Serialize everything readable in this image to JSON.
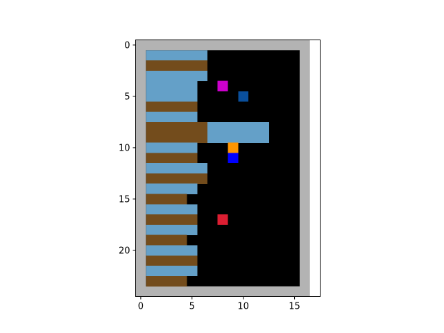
{
  "chart_data": {
    "type": "heatmap",
    "title": "",
    "xlabel": "",
    "ylabel": "",
    "grid": false,
    "legend": "none",
    "grid_size": {
      "cols": 17,
      "rows": 24
    },
    "xlim": [
      -0.5,
      17.5
    ],
    "ylim": [
      24.5,
      -0.5
    ],
    "x_ticks": [
      0,
      5,
      10,
      15
    ],
    "y_ticks": [
      0,
      5,
      10,
      15,
      20
    ],
    "x_tick_labels": [
      "0",
      "5",
      "10",
      "15"
    ],
    "y_tick_labels": [
      "0",
      "5",
      "10",
      "15",
      "20"
    ],
    "colors": {
      "wall": "#b3b3b3",
      "floor": "#000000",
      "water": "#64a0c8",
      "dirt": "#734c1c",
      "magenta": "#cc00cc",
      "darkblue": "#0a4f9c",
      "orange": "#ff9500",
      "blue": "#0000ff",
      "red": "#dc1e32"
    },
    "rows": [
      {
        "y": 1,
        "segments": [
          [
            1,
            6,
            "water"
          ]
        ]
      },
      {
        "y": 2,
        "segments": [
          [
            1,
            6,
            "dirt"
          ]
        ]
      },
      {
        "y": 3,
        "segments": [
          [
            1,
            6,
            "water"
          ]
        ]
      },
      {
        "y": 4,
        "segments": [
          [
            1,
            5,
            "water"
          ]
        ]
      },
      {
        "y": 5,
        "segments": [
          [
            1,
            5,
            "water"
          ]
        ]
      },
      {
        "y": 6,
        "segments": [
          [
            1,
            5,
            "dirt"
          ]
        ]
      },
      {
        "y": 7,
        "segments": [
          [
            1,
            5,
            "water"
          ]
        ]
      },
      {
        "y": 8,
        "segments": [
          [
            1,
            6,
            "dirt"
          ],
          [
            7,
            12,
            "water"
          ]
        ]
      },
      {
        "y": 9,
        "segments": [
          [
            1,
            6,
            "dirt"
          ],
          [
            7,
            12,
            "water"
          ]
        ]
      },
      {
        "y": 10,
        "segments": [
          [
            1,
            5,
            "water"
          ]
        ]
      },
      {
        "y": 11,
        "segments": [
          [
            1,
            5,
            "dirt"
          ]
        ]
      },
      {
        "y": 12,
        "segments": [
          [
            1,
            6,
            "water"
          ]
        ]
      },
      {
        "y": 13,
        "segments": [
          [
            1,
            6,
            "dirt"
          ]
        ]
      },
      {
        "y": 14,
        "segments": [
          [
            1,
            5,
            "water"
          ]
        ]
      },
      {
        "y": 15,
        "segments": [
          [
            1,
            4,
            "dirt"
          ]
        ]
      },
      {
        "y": 16,
        "segments": [
          [
            1,
            5,
            "water"
          ]
        ]
      },
      {
        "y": 17,
        "segments": [
          [
            1,
            5,
            "dirt"
          ]
        ]
      },
      {
        "y": 18,
        "segments": [
          [
            1,
            5,
            "water"
          ]
        ]
      },
      {
        "y": 19,
        "segments": [
          [
            1,
            4,
            "dirt"
          ]
        ]
      },
      {
        "y": 20,
        "segments": [
          [
            1,
            5,
            "water"
          ]
        ]
      },
      {
        "y": 21,
        "segments": [
          [
            1,
            5,
            "dirt"
          ]
        ]
      },
      {
        "y": 22,
        "segments": [
          [
            1,
            5,
            "water"
          ]
        ]
      },
      {
        "y": 23,
        "segments": [
          [
            1,
            4,
            "dirt"
          ]
        ]
      }
    ],
    "objects": [
      {
        "name": "magenta-object",
        "x": 8,
        "y": 4,
        "color": "magenta"
      },
      {
        "name": "darkblue-object",
        "x": 10,
        "y": 5,
        "color": "darkblue"
      },
      {
        "name": "orange-object",
        "x": 9,
        "y": 10,
        "color": "orange"
      },
      {
        "name": "blue-object",
        "x": 9,
        "y": 11,
        "color": "blue"
      },
      {
        "name": "red-object",
        "x": 8,
        "y": 17,
        "color": "red"
      }
    ]
  }
}
